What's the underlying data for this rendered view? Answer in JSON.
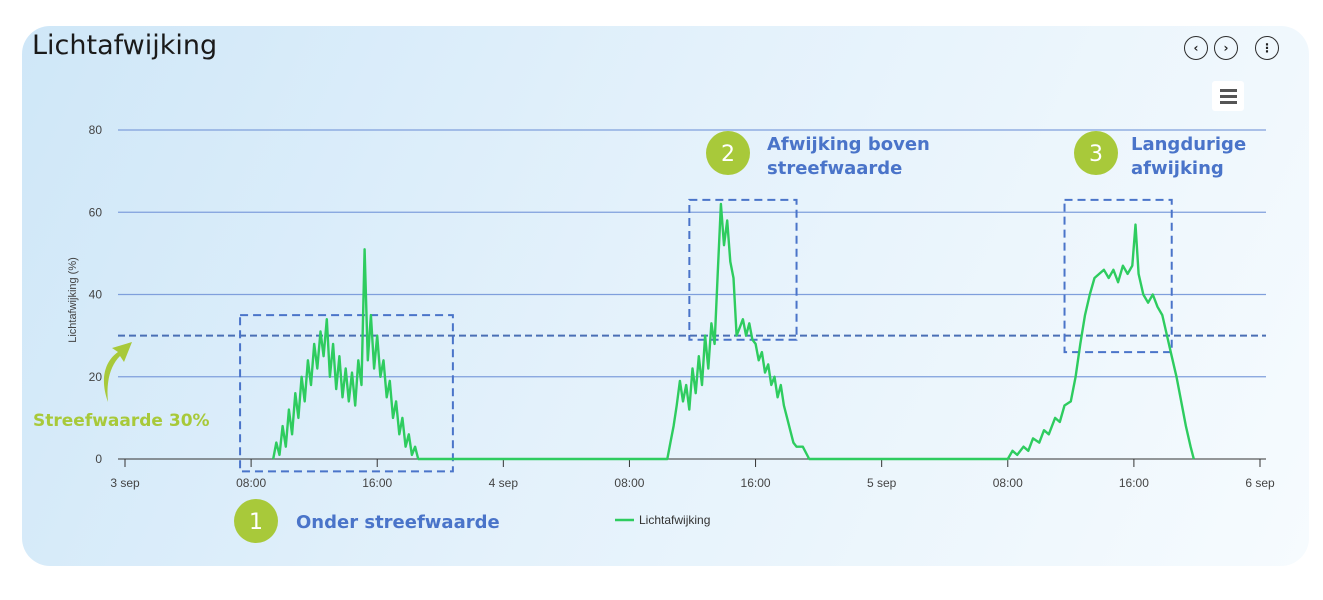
{
  "card": {
    "title": "Lichtafwijking",
    "buttons": [
      {
        "name": "prev-button",
        "icon": "chevron-left-icon",
        "glyph": "‹"
      },
      {
        "name": "next-button",
        "icon": "chevron-right-icon",
        "glyph": "›"
      },
      {
        "name": "more-button",
        "icon": "more-vertical-icon",
        "glyph": "⋮"
      }
    ],
    "menu_icon": "hamburger-menu-icon"
  },
  "chart_data": {
    "type": "line",
    "title": "",
    "xlabel": "",
    "ylabel": "Lichtafwijking (%)",
    "xlim": [
      0,
      72
    ],
    "ylim": [
      0,
      80
    ],
    "x_unit": "hours since 3 sep 00:00",
    "yticks": [
      0,
      20,
      40,
      60,
      80
    ],
    "xticks": [
      {
        "x": 0,
        "label": "3 sep"
      },
      {
        "x": 8,
        "label": "08:00"
      },
      {
        "x": 16,
        "label": "16:00"
      },
      {
        "x": 24,
        "label": "4 sep"
      },
      {
        "x": 32,
        "label": "08:00"
      },
      {
        "x": 40,
        "label": "16:00"
      },
      {
        "x": 48,
        "label": "5 sep"
      },
      {
        "x": 56,
        "label": "08:00"
      },
      {
        "x": 64,
        "label": "16:00"
      },
      {
        "x": 72,
        "label": "6 sep"
      }
    ],
    "grid": true,
    "legend": "bottom-center",
    "series": [
      {
        "name": "Lichtafwijking",
        "color": "#2ecc5f",
        "points": [
          [
            9.4,
            0
          ],
          [
            9.6,
            4
          ],
          [
            9.8,
            1
          ],
          [
            10.0,
            8
          ],
          [
            10.2,
            3
          ],
          [
            10.4,
            12
          ],
          [
            10.6,
            6
          ],
          [
            10.8,
            16
          ],
          [
            11.0,
            10
          ],
          [
            11.2,
            20
          ],
          [
            11.4,
            14
          ],
          [
            11.6,
            24
          ],
          [
            11.8,
            18
          ],
          [
            12.0,
            28
          ],
          [
            12.2,
            22
          ],
          [
            12.4,
            31
          ],
          [
            12.6,
            25
          ],
          [
            12.8,
            34
          ],
          [
            13.0,
            20
          ],
          [
            13.2,
            28
          ],
          [
            13.4,
            17
          ],
          [
            13.6,
            25
          ],
          [
            13.8,
            15
          ],
          [
            14.0,
            22
          ],
          [
            14.2,
            14
          ],
          [
            14.4,
            21
          ],
          [
            14.6,
            13
          ],
          [
            14.8,
            24
          ],
          [
            15.0,
            18
          ],
          [
            15.2,
            51
          ],
          [
            15.4,
            24
          ],
          [
            15.6,
            35
          ],
          [
            15.8,
            22
          ],
          [
            16.0,
            30
          ],
          [
            16.2,
            20
          ],
          [
            16.4,
            24
          ],
          [
            16.6,
            15
          ],
          [
            16.8,
            19
          ],
          [
            17.0,
            10
          ],
          [
            17.2,
            14
          ],
          [
            17.4,
            6
          ],
          [
            17.6,
            10
          ],
          [
            17.8,
            3
          ],
          [
            18.0,
            6
          ],
          [
            18.2,
            1
          ],
          [
            18.4,
            3
          ],
          [
            18.6,
            0
          ],
          [
            34.4,
            0
          ],
          [
            34.6,
            4
          ],
          [
            34.8,
            8
          ],
          [
            35.0,
            13
          ],
          [
            35.2,
            19
          ],
          [
            35.4,
            14
          ],
          [
            35.6,
            18
          ],
          [
            35.8,
            12
          ],
          [
            36.0,
            22
          ],
          [
            36.2,
            16
          ],
          [
            36.4,
            25
          ],
          [
            36.6,
            18
          ],
          [
            36.8,
            30
          ],
          [
            37.0,
            22
          ],
          [
            37.2,
            33
          ],
          [
            37.4,
            28
          ],
          [
            37.6,
            45
          ],
          [
            37.8,
            62
          ],
          [
            38.0,
            52
          ],
          [
            38.2,
            58
          ],
          [
            38.4,
            48
          ],
          [
            38.6,
            44
          ],
          [
            38.8,
            30
          ],
          [
            39.0,
            32
          ],
          [
            39.2,
            34
          ],
          [
            39.4,
            30
          ],
          [
            39.6,
            33
          ],
          [
            39.8,
            29
          ],
          [
            40.0,
            28
          ],
          [
            40.2,
            24
          ],
          [
            40.4,
            26
          ],
          [
            40.6,
            21
          ],
          [
            40.8,
            23
          ],
          [
            41.0,
            18
          ],
          [
            41.2,
            20
          ],
          [
            41.4,
            15
          ],
          [
            41.6,
            18
          ],
          [
            41.8,
            13
          ],
          [
            42.0,
            10
          ],
          [
            42.2,
            7
          ],
          [
            42.4,
            4
          ],
          [
            42.6,
            3
          ],
          [
            43.0,
            3
          ],
          [
            43.4,
            0
          ],
          [
            56.0,
            0
          ],
          [
            56.3,
            2
          ],
          [
            56.6,
            1
          ],
          [
            57.0,
            3
          ],
          [
            57.3,
            2
          ],
          [
            57.6,
            5
          ],
          [
            58.0,
            4
          ],
          [
            58.3,
            7
          ],
          [
            58.6,
            6
          ],
          [
            59.0,
            10
          ],
          [
            59.3,
            9
          ],
          [
            59.6,
            13
          ],
          [
            60.0,
            14
          ],
          [
            60.3,
            20
          ],
          [
            60.6,
            28
          ],
          [
            60.9,
            35
          ],
          [
            61.2,
            40
          ],
          [
            61.5,
            44
          ],
          [
            61.8,
            45
          ],
          [
            62.1,
            46
          ],
          [
            62.4,
            44
          ],
          [
            62.7,
            46
          ],
          [
            63.0,
            43
          ],
          [
            63.3,
            47
          ],
          [
            63.6,
            45
          ],
          [
            63.9,
            47
          ],
          [
            64.1,
            57
          ],
          [
            64.3,
            45
          ],
          [
            64.6,
            40
          ],
          [
            64.9,
            38
          ],
          [
            65.2,
            40
          ],
          [
            65.5,
            37
          ],
          [
            65.8,
            35
          ],
          [
            66.1,
            30
          ],
          [
            66.4,
            25
          ],
          [
            66.7,
            20
          ],
          [
            67.0,
            14
          ],
          [
            67.3,
            8
          ],
          [
            67.6,
            3
          ],
          [
            67.8,
            0
          ]
        ]
      }
    ],
    "target_line": {
      "value": 30,
      "label": "Streefwaarde 30%",
      "color": "#4a6fb5"
    },
    "annotations": [
      {
        "number": "1",
        "text": [
          "Onder streefwaarde"
        ],
        "box": {
          "x0": 7.3,
          "x1": 20.8,
          "y0": -3,
          "y1": 35
        }
      },
      {
        "number": "2",
        "text": [
          "Afwijking boven",
          "streefwaarde"
        ],
        "box": {
          "x0": 35.8,
          "x1": 42.6,
          "y0": 29,
          "y1": 63
        }
      },
      {
        "number": "3",
        "text": [
          "Langdurige",
          "afwijking"
        ],
        "box": {
          "x0": 59.6,
          "x1": 66.4,
          "y0": 26,
          "y1": 63
        }
      }
    ]
  }
}
